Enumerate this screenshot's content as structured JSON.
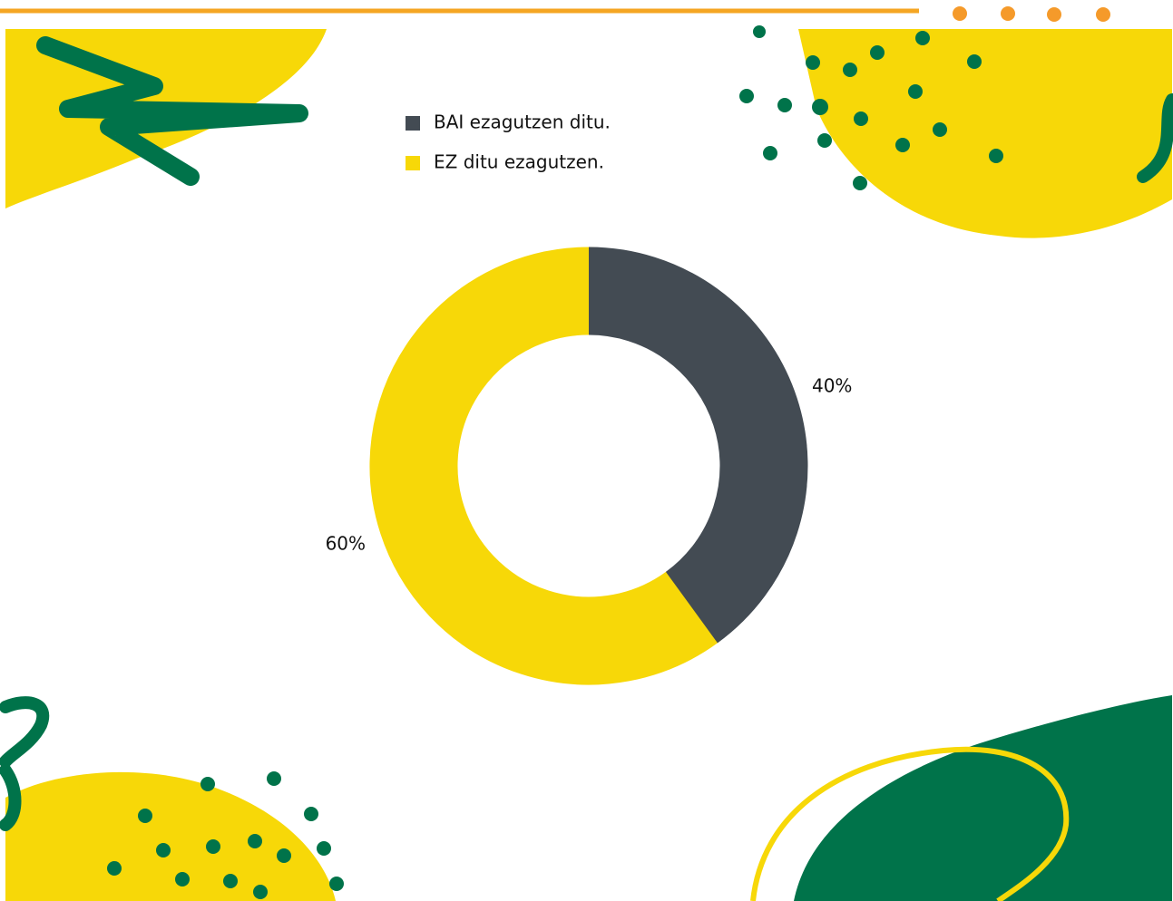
{
  "chart_data": {
    "type": "pie",
    "donut": true,
    "categories": [
      "BAI ezagutzen ditu.",
      "EZ ditu ezagutzen."
    ],
    "values": [
      40,
      60
    ],
    "value_labels": [
      "40%",
      "60%"
    ],
    "colors": [
      "#434b53",
      "#f7d808"
    ]
  }
}
